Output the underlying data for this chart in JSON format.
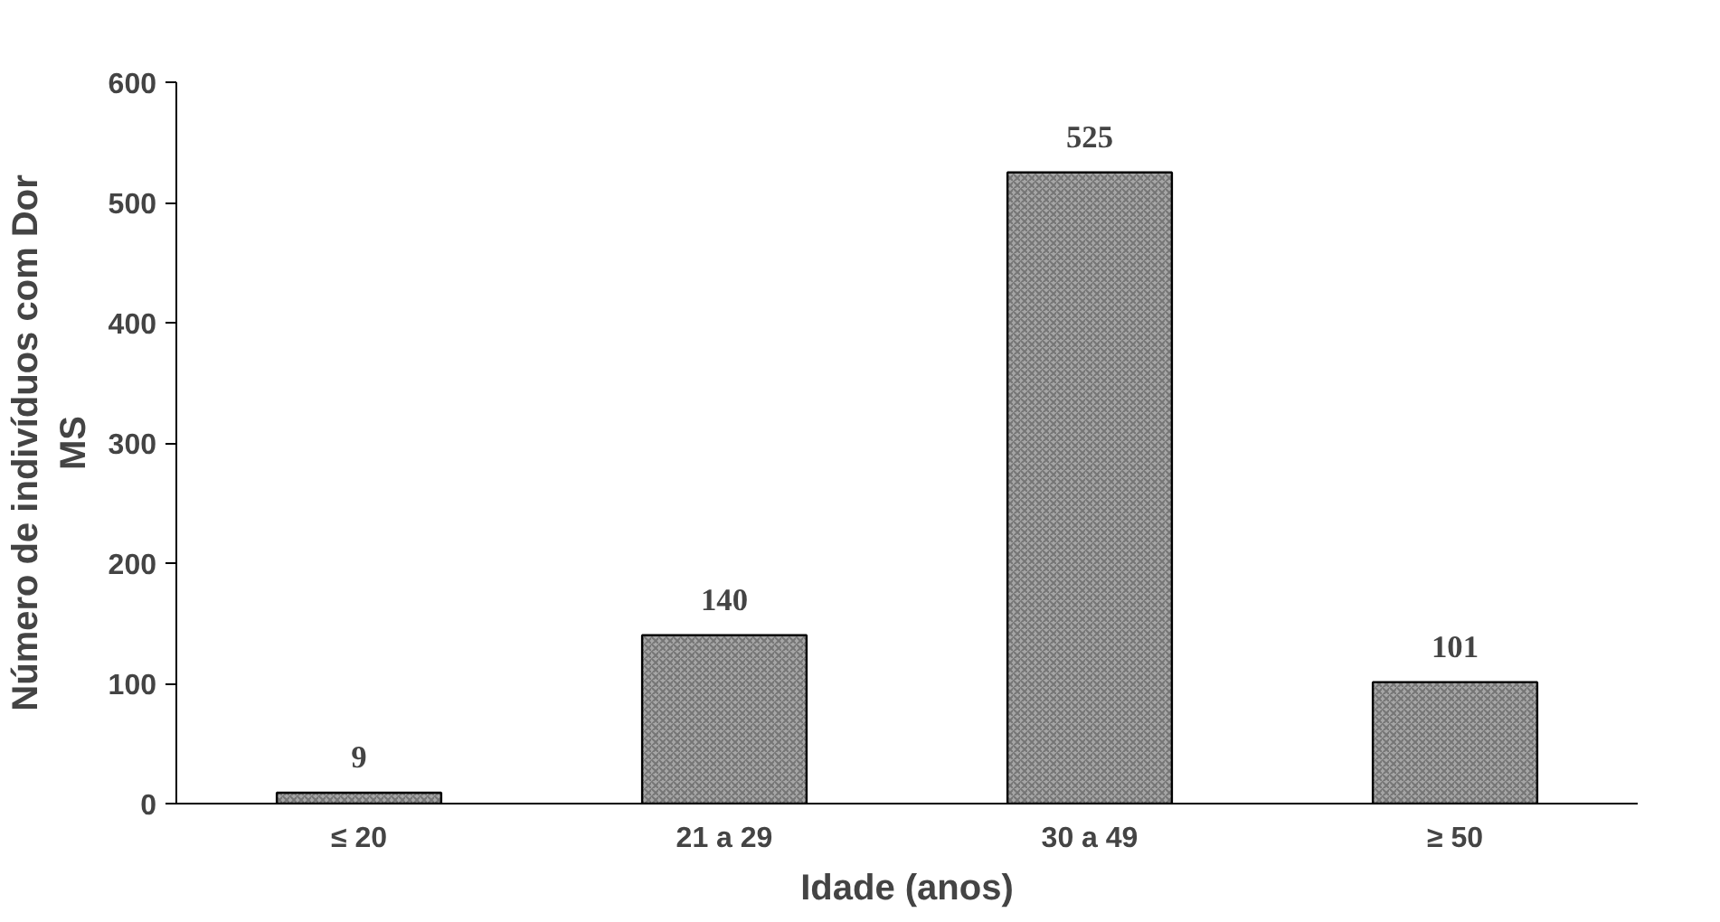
{
  "chart_data": {
    "type": "bar",
    "xlabel": "Idade (anos)",
    "ylabel": "Número de indivíduos com Dor\nMS",
    "categories": [
      "≤ 20",
      "21 a 29",
      "30 a 49",
      "≥ 50"
    ],
    "values": [
      9,
      140,
      525,
      101
    ],
    "color": "#a6a6a6",
    "data_labels": true,
    "ylim": [
      0,
      600
    ],
    "yticks": [
      0,
      100,
      200,
      300,
      400,
      500,
      600
    ],
    "grid": false
  }
}
